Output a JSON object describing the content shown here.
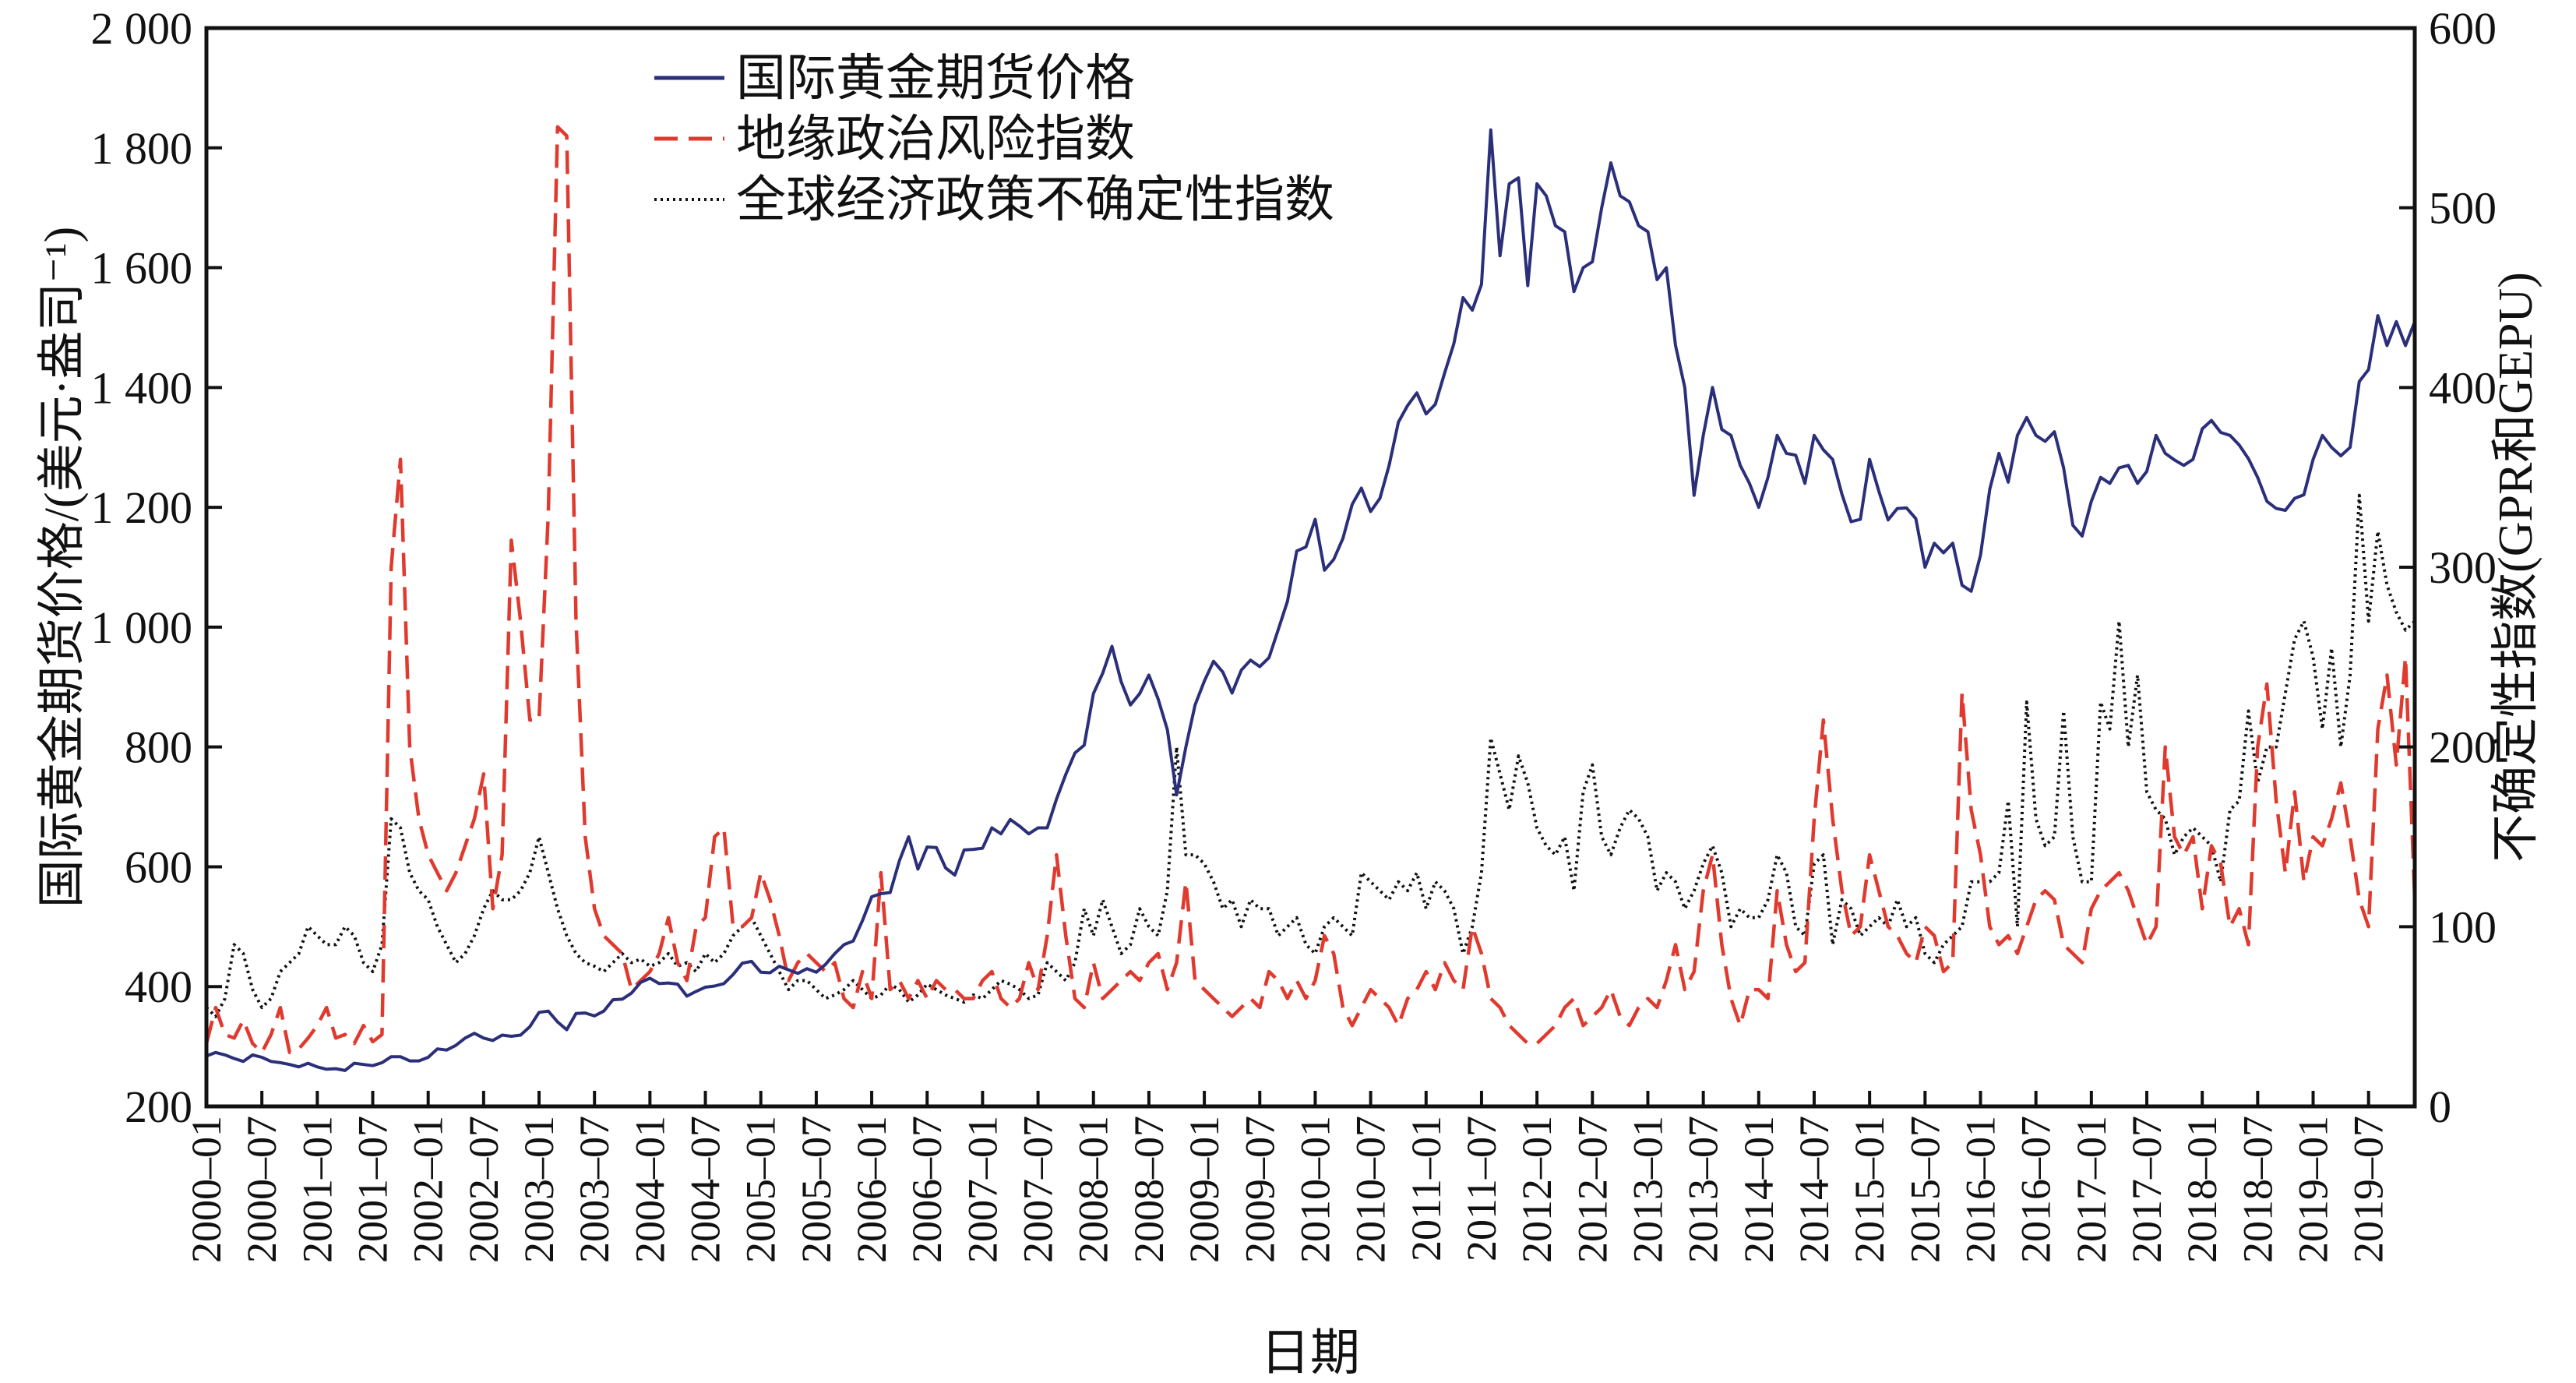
{
  "chart_data": {
    "type": "line",
    "xlabel": "日期",
    "ylabel_left": "国际黄金期货价格/(美元·盎司⁻¹)",
    "ylabel_right": "不确定性指数(GPR和GEPU)",
    "ylim_left": [
      200,
      2000
    ],
    "ylim_right": [
      0,
      600
    ],
    "yticks_left": [
      "200",
      "400",
      "600",
      "800",
      "1 000",
      "1 200",
      "1 400",
      "1 600",
      "1 800",
      "2 000"
    ],
    "yticks_right": [
      "0",
      "100",
      "200",
      "300",
      "400",
      "500",
      "600"
    ],
    "x_start": "2000-01",
    "x_end": "2019-12",
    "x_tick_step_months": 6,
    "legend_position": "top-left",
    "grid": false,
    "series": [
      {
        "name": "国际黄金期货价格",
        "axis": "left",
        "style": "solid",
        "color": "#2b2f7a",
        "values": [
          284,
          290,
          286,
          280,
          275,
          286,
          282,
          275,
          273,
          270,
          266,
          272,
          266,
          262,
          263,
          260,
          272,
          270,
          268,
          273,
          283,
          283,
          276,
          276,
          282,
          296,
          294,
          302,
          314,
          322,
          314,
          310,
          319,
          317,
          319,
          333,
          357,
          359,
          341,
          328,
          355,
          356,
          351,
          359,
          378,
          379,
          389,
          407,
          414,
          405,
          406,
          404,
          384,
          392,
          399,
          401,
          405,
          420,
          439,
          442,
          424,
          423,
          434,
          428,
          422,
          430,
          424,
          437,
          455,
          470,
          476,
          510,
          550,
          555,
          557,
          610,
          650,
          596,
          633,
          632,
          598,
          586,
          628,
          629,
          631,
          665,
          655,
          679,
          668,
          655,
          665,
          665,
          713,
          754,
          790,
          803,
          889,
          923,
          968,
          909,
          870,
          889,
          920,
          880,
          829,
          720,
          800,
          870,
          910,
          943,
          925,
          890,
          928,
          945,
          934,
          949,
          996,
          1043,
          1127,
          1134,
          1180,
          1095,
          1113,
          1148,
          1205,
          1232,
          1193,
          1215,
          1270,
          1342,
          1370,
          1391,
          1356,
          1372,
          1424,
          1473,
          1550,
          1529,
          1572,
          1830,
          1620,
          1740,
          1750,
          1570,
          1740,
          1720,
          1670,
          1660,
          1560,
          1600,
          1610,
          1700,
          1775,
          1720,
          1710,
          1670,
          1660,
          1580,
          1600,
          1470,
          1400,
          1220,
          1320,
          1400,
          1330,
          1320,
          1270,
          1240,
          1200,
          1250,
          1320,
          1290,
          1287,
          1240,
          1320,
          1296,
          1280,
          1222,
          1176,
          1180,
          1280,
          1227,
          1179,
          1198,
          1199,
          1181,
          1100,
          1140,
          1124,
          1140,
          1070,
          1060,
          1120,
          1230,
          1290,
          1242,
          1320,
          1350,
          1320,
          1310,
          1326,
          1266,
          1170,
          1152,
          1210,
          1250,
          1240,
          1266,
          1270,
          1240,
          1260,
          1320,
          1290,
          1279,
          1270,
          1280,
          1331,
          1345,
          1325,
          1320,
          1304,
          1281,
          1250,
          1210,
          1198,
          1195,
          1215,
          1221,
          1280,
          1320,
          1300,
          1286,
          1300,
          1410,
          1430,
          1520,
          1470,
          1510,
          1470,
          1510
        ]
      },
      {
        "name": "地缘政治风险指数",
        "axis": "right",
        "style": "dashed",
        "color": "#e03a2f",
        "values": [
          35,
          55,
          40,
          38,
          48,
          35,
          30,
          40,
          55,
          30,
          32,
          38,
          45,
          55,
          38,
          40,
          35,
          45,
          36,
          40,
          300,
          360,
          200,
          160,
          140,
          130,
          120,
          130,
          145,
          160,
          185,
          110,
          140,
          315,
          270,
          215,
          215,
          330,
          545,
          540,
          270,
          150,
          110,
          95,
          90,
          85,
          65,
          70,
          75,
          85,
          105,
          80,
          70,
          100,
          105,
          150,
          155,
          100,
          100,
          105,
          130,
          115,
          95,
          70,
          80,
          85,
          80,
          75,
          80,
          60,
          55,
          75,
          60,
          130,
          65,
          70,
          60,
          70,
          60,
          70,
          65,
          65,
          60,
          60,
          70,
          75,
          60,
          55,
          60,
          80,
          65,
          95,
          140,
          95,
          60,
          55,
          80,
          60,
          65,
          70,
          75,
          70,
          80,
          85,
          65,
          80,
          125,
          70,
          65,
          60,
          55,
          50,
          55,
          60,
          55,
          75,
          70,
          60,
          70,
          60,
          70,
          95,
          85,
          55,
          45,
          55,
          65,
          60,
          55,
          45,
          60,
          65,
          75,
          65,
          80,
          70,
          65,
          100,
          85,
          60,
          55,
          45,
          40,
          35,
          35,
          40,
          45,
          55,
          60,
          45,
          50,
          55,
          65,
          50,
          45,
          55,
          60,
          55,
          70,
          90,
          65,
          75,
          120,
          140,
          90,
          60,
          45,
          65,
          65,
          60,
          120,
          90,
          75,
          80,
          160,
          215,
          160,
          120,
          95,
          100,
          140,
          120,
          100,
          95,
          85,
          80,
          100,
          95,
          75,
          80,
          230,
          165,
          140,
          100,
          90,
          95,
          85,
          100,
          115,
          120,
          115,
          90,
          85,
          80,
          110,
          120,
          125,
          130,
          120,
          105,
          90,
          100,
          200,
          150,
          140,
          150,
          110,
          145,
          135,
          100,
          110,
          90,
          200,
          235,
          170,
          130,
          175,
          125,
          150,
          145,
          160,
          180,
          150,
          115,
          100,
          210,
          240,
          190,
          250,
          115
        ]
      },
      {
        "name": "全球经济政策不确定性指数",
        "axis": "right",
        "style": "dotted",
        "color": "#111111",
        "values": [
          55,
          50,
          60,
          90,
          85,
          65,
          55,
          60,
          75,
          80,
          85,
          100,
          95,
          90,
          90,
          100,
          95,
          80,
          75,
          90,
          160,
          155,
          130,
          120,
          115,
          100,
          90,
          80,
          85,
          95,
          110,
          120,
          115,
          115,
          120,
          130,
          150,
          130,
          110,
          95,
          85,
          80,
          78,
          75,
          80,
          85,
          80,
          82,
          78,
          80,
          85,
          78,
          80,
          75,
          85,
          80,
          85,
          95,
          100,
          105,
          95,
          85,
          75,
          65,
          70,
          70,
          65,
          60,
          62,
          65,
          70,
          65,
          60,
          62,
          68,
          65,
          58,
          62,
          68,
          65,
          62,
          60,
          58,
          62,
          60,
          65,
          70,
          68,
          65,
          60,
          62,
          80,
          75,
          70,
          80,
          110,
          95,
          115,
          100,
          85,
          90,
          110,
          100,
          95,
          120,
          200,
          140,
          140,
          135,
          125,
          110,
          115,
          100,
          115,
          110,
          110,
          95,
          100,
          105,
          90,
          85,
          100,
          105,
          100,
          95,
          130,
          125,
          120,
          115,
          125,
          120,
          130,
          110,
          125,
          120,
          110,
          85,
          100,
          130,
          205,
          185,
          165,
          195,
          180,
          155,
          145,
          140,
          150,
          120,
          175,
          190,
          150,
          140,
          155,
          165,
          160,
          150,
          120,
          130,
          125,
          110,
          120,
          135,
          145,
          130,
          100,
          110,
          105,
          105,
          115,
          140,
          130,
          100,
          95,
          135,
          140,
          90,
          115,
          110,
          95,
          100,
          105,
          100,
          115,
          100,
          105,
          85,
          80,
          90,
          95,
          100,
          125,
          125,
          125,
          130,
          170,
          100,
          225,
          160,
          145,
          150,
          220,
          150,
          125,
          125,
          225,
          210,
          270,
          200,
          240,
          175,
          165,
          160,
          140,
          150,
          155,
          150,
          145,
          125,
          165,
          170,
          220,
          180,
          200,
          200,
          230,
          260,
          270,
          250,
          210,
          255,
          200,
          240,
          340,
          270,
          320,
          290,
          275,
          265,
          270
        ]
      }
    ]
  }
}
